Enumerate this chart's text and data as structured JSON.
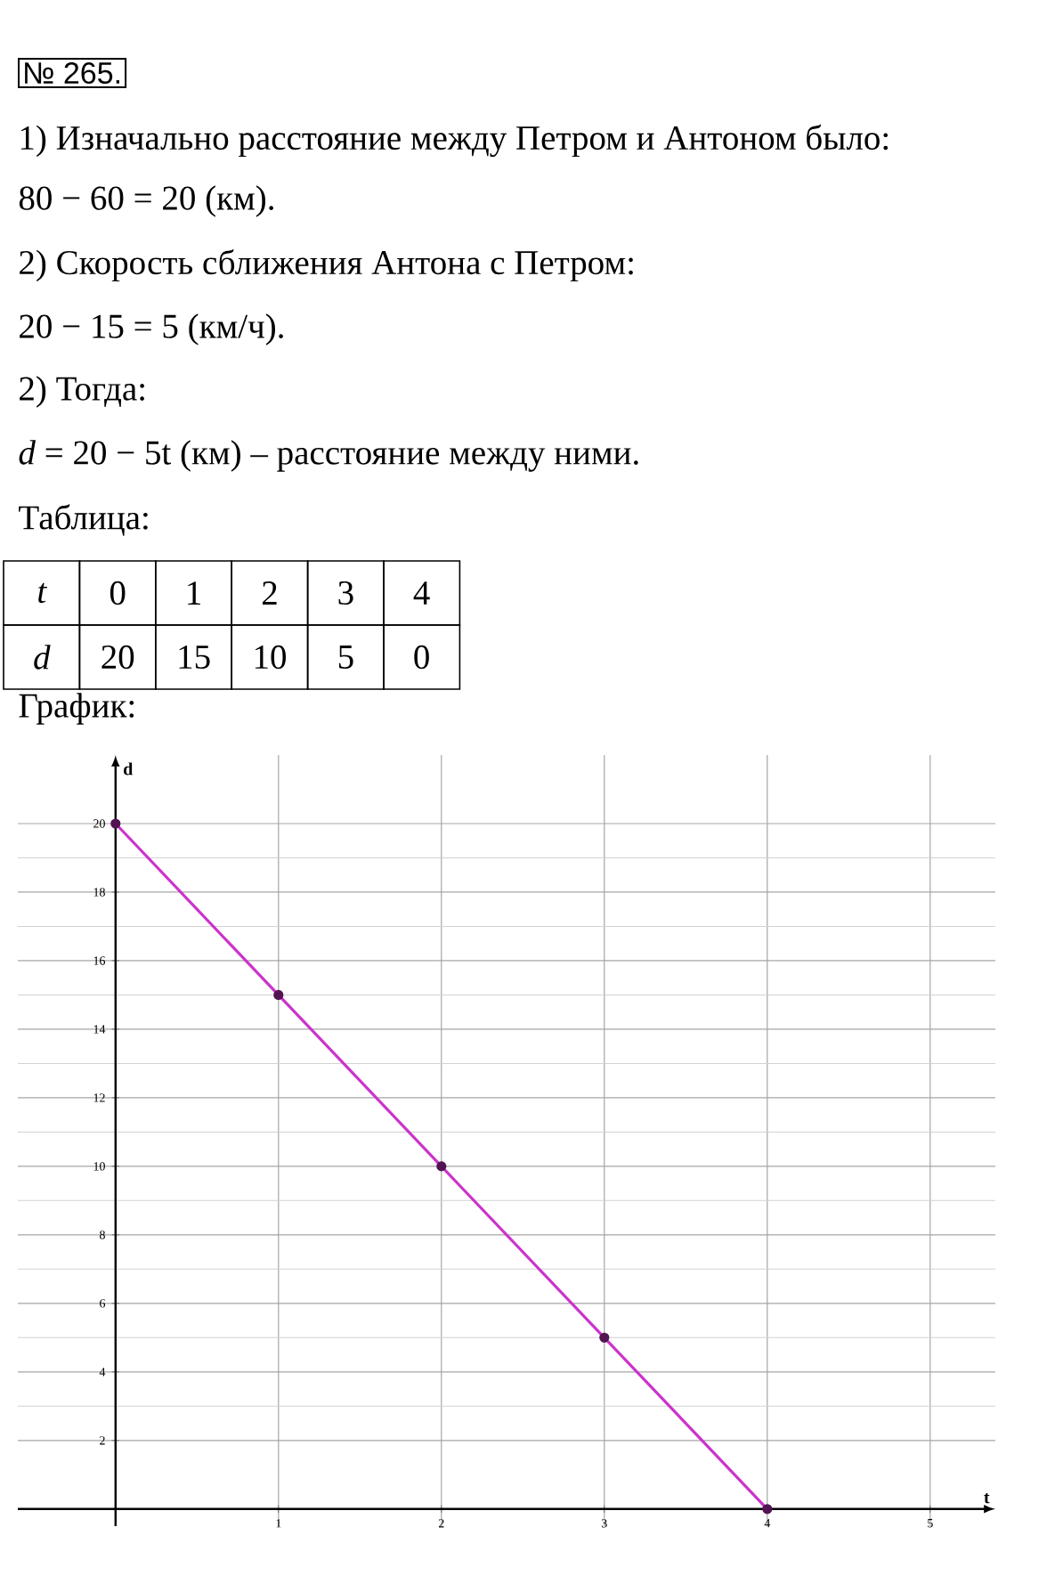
{
  "chart_data": {
    "type": "line",
    "xlabel": "t",
    "ylabel": "d",
    "annotations": [
      "№ 265.",
      "1) Изначально расстояние между Петром и Антоном было:",
      "80 − 60 = 20 (км).",
      "2) Скорость сближения Антона с Петром:",
      "20 − 15 = 5 (км/ч).",
      "2) Тогда:",
      "*d* = 20 − 5t (км) – расстояние между ними.",
      "Таблица:",
      "График:",
      "t",
      "0",
      "1",
      "2",
      "3",
      "4",
      "d",
      "20",
      "15",
      "10",
      "5",
      "0"
    ],
    "x": [
      0,
      1,
      2,
      3,
      4
    ],
    "values": [
      20,
      15,
      10,
      5,
      0
    ],
    "color": "#cc33cc",
    "marker": "circle",
    "xlim": [
      -0.6,
      5.4
    ],
    "ylim": [
      -0.5,
      22
    ],
    "xticks": [
      1,
      2,
      3,
      4,
      5
    ],
    "yticks": [
      2,
      4,
      6,
      8,
      10,
      12,
      14,
      16,
      18,
      20
    ],
    "grid": true
  }
}
